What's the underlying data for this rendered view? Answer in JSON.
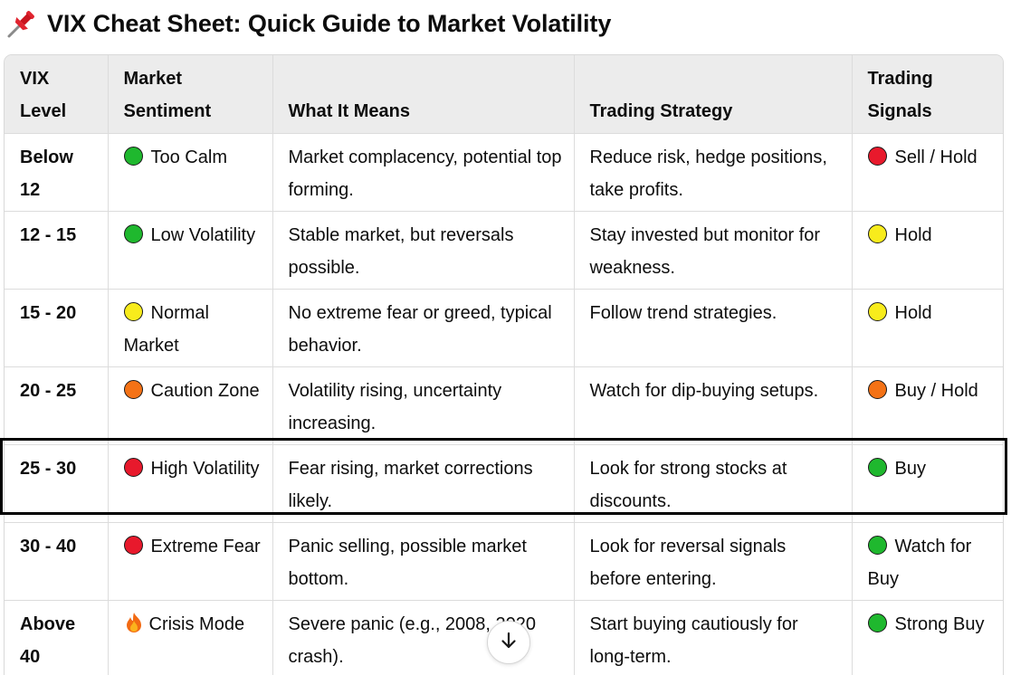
{
  "heading": "VIX Cheat Sheet: Quick Guide to Market Volatility",
  "heading_icon": "pushpin-icon",
  "colors": {
    "green": "#1fb82e",
    "yellow": "#f8ec1c",
    "orange": "#f47216",
    "red": "#e8192c",
    "header_bg": "#ececec",
    "highlight_border": "#000000"
  },
  "table": {
    "headers": [
      "VIX Level",
      "Market Sentiment",
      "What It Means",
      "Trading Strategy",
      "Trading Signals"
    ],
    "rows": [
      {
        "level": "Below 12",
        "sentiment_icon": "green-circle",
        "sentiment": "Too Calm",
        "meaning": "Market complacency, potential top forming.",
        "strategy": "Reduce risk, hedge positions, take profits.",
        "signal_icon": "red-circle",
        "signal": "Sell / Hold"
      },
      {
        "level": "12 - 15",
        "sentiment_icon": "green-circle",
        "sentiment": "Low Volatility",
        "meaning": "Stable market, but reversals possible.",
        "strategy": "Stay invested but monitor for weakness.",
        "signal_icon": "yellow-circle",
        "signal": "Hold"
      },
      {
        "level": "15 - 20",
        "sentiment_icon": "yellow-circle",
        "sentiment": "Normal Market",
        "meaning": "No extreme fear or greed, typical behavior.",
        "strategy": "Follow trend strategies.",
        "signal_icon": "yellow-circle",
        "signal": "Hold"
      },
      {
        "level": "20 - 25",
        "sentiment_icon": "orange-circle",
        "sentiment": "Caution Zone",
        "meaning": "Volatility rising, uncertainty increasing.",
        "strategy": "Watch for dip-buying setups.",
        "signal_icon": "orange-circle",
        "signal": "Buy / Hold"
      },
      {
        "level": "25 - 30",
        "sentiment_icon": "red-circle",
        "sentiment": "High Volatility",
        "meaning": "Fear rising, market corrections likely.",
        "strategy": "Look for strong stocks at discounts.",
        "signal_icon": "green-circle",
        "signal": "Buy"
      },
      {
        "level": "30 - 40",
        "sentiment_icon": "red-circle",
        "sentiment": "Extreme Fear",
        "meaning": "Panic selling, possible market bottom.",
        "strategy": "Look for reversal signals before entering.",
        "signal_icon": "green-circle",
        "signal": "Watch for Buy"
      },
      {
        "level": "Above 40",
        "sentiment_icon": "fire-icon",
        "sentiment": "Crisis Mode",
        "meaning": "Severe panic (e.g., 2008, 2020 crash).",
        "strategy": "Start buying cautiously for long-term.",
        "signal_icon": "green-circle",
        "signal": "Strong Buy"
      }
    ]
  },
  "scroll_button_icon": "arrow-down-icon"
}
